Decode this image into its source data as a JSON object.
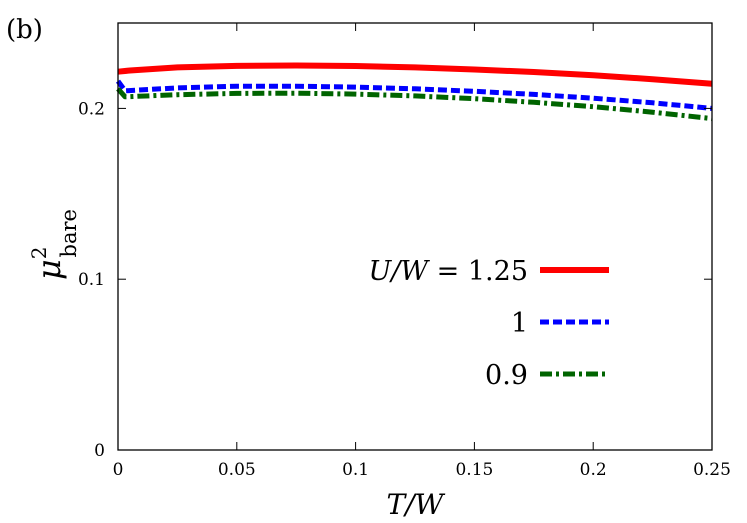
{
  "panel_label": "(b)",
  "chart_data": {
    "type": "line",
    "title": "",
    "xlabel": "T/W",
    "ylabel": {
      "base": "μ",
      "superscript": "2",
      "subscript": "bare"
    },
    "xlim": [
      0,
      0.25
    ],
    "ylim": [
      0,
      0.25
    ],
    "x_ticks": [
      0,
      0.05,
      0.1,
      0.15,
      0.2,
      0.25
    ],
    "x_tick_labels": [
      "0",
      "0.05",
      "0.1",
      "0.15",
      "0.2",
      "0.25"
    ],
    "y_ticks": [
      0,
      0.1,
      0.2
    ],
    "y_tick_labels": [
      "0",
      "0.1",
      "0.2"
    ],
    "grid": false,
    "legend_position": "center-right",
    "series": [
      {
        "name": "U/W = 1.25",
        "legend_var": "U/W = ",
        "legend_value": "1.25",
        "color": "#ff0000",
        "style": "solid",
        "x": [
          0,
          0.005,
          0.025,
          0.05,
          0.075,
          0.1,
          0.125,
          0.15,
          0.175,
          0.2,
          0.225,
          0.25
        ],
        "y": [
          0.2215,
          0.2222,
          0.224,
          0.2249,
          0.2251,
          0.2248,
          0.224,
          0.2228,
          0.2213,
          0.2194,
          0.2171,
          0.2144
        ]
      },
      {
        "name": "1",
        "legend_var": "",
        "legend_value": "1",
        "color": "#0000ff",
        "style": "dashed",
        "x": [
          0,
          0.003,
          0.025,
          0.05,
          0.075,
          0.1,
          0.125,
          0.15,
          0.175,
          0.2,
          0.225,
          0.25
        ],
        "y": [
          0.216,
          0.2103,
          0.212,
          0.213,
          0.213,
          0.2125,
          0.2115,
          0.21,
          0.2082,
          0.206,
          0.2033,
          0.2
        ]
      },
      {
        "name": "0.9",
        "legend_var": "",
        "legend_value": "0.9",
        "color": "#006400",
        "style": "dashdot",
        "x": [
          0,
          0.003,
          0.025,
          0.05,
          0.075,
          0.1,
          0.125,
          0.15,
          0.175,
          0.2,
          0.225,
          0.25
        ],
        "y": [
          0.2115,
          0.2068,
          0.208,
          0.2088,
          0.2089,
          0.2084,
          0.2073,
          0.2057,
          0.2036,
          0.201,
          0.1978,
          0.194
        ]
      }
    ]
  }
}
